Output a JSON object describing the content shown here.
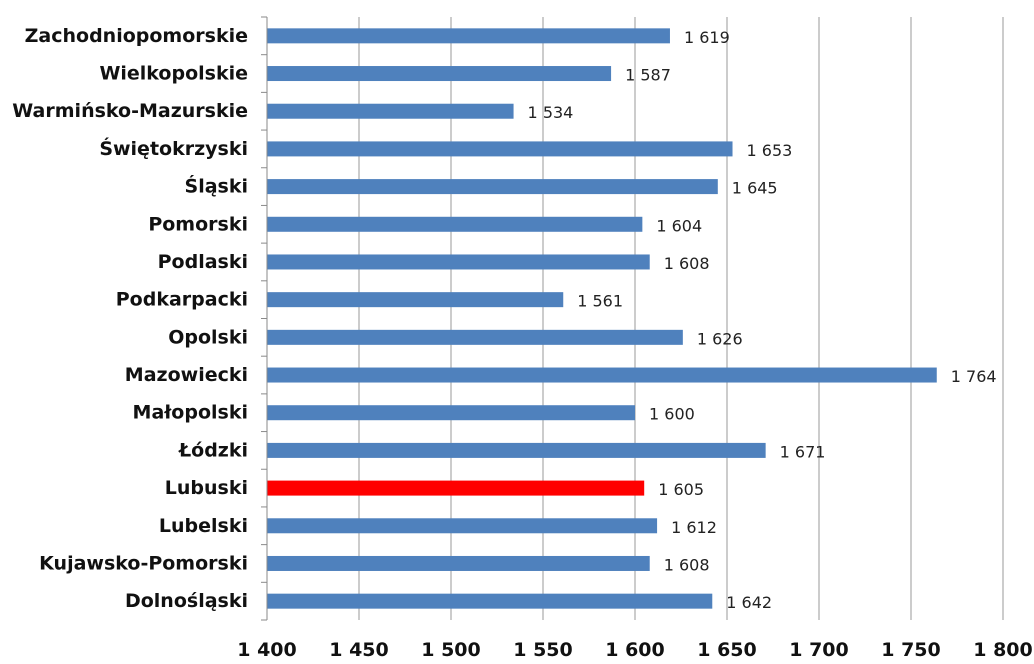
{
  "chart_data": {
    "type": "bar",
    "orientation": "horizontal",
    "categories": [
      "Zachodniopomorskie",
      "Wielkopolskie",
      "Warmińsko-Mazurskie",
      "Świętokrzyski",
      "Śląski",
      "Pomorski",
      "Podlaski",
      "Podkarpacki",
      "Opolski",
      "Mazowiecki",
      "Małopolski",
      "Łódzki",
      "Lubuski",
      "Lubelski",
      "Kujawsko-Pomorski",
      "Dolnośląski"
    ],
    "values": [
      1619,
      1587,
      1534,
      1653,
      1645,
      1604,
      1608,
      1561,
      1626,
      1764,
      1600,
      1671,
      1605,
      1612,
      1608,
      1642
    ],
    "value_labels": [
      "1 619",
      "1 587",
      "1 534",
      "1 653",
      "1 645",
      "1 604",
      "1 608",
      "1 561",
      "1 626",
      "1 764",
      "1 600",
      "1 671",
      "1 605",
      "1 612",
      "1 608",
      "1 642"
    ],
    "xlim": [
      1400,
      1800
    ],
    "xticks": [
      1400,
      1450,
      1500,
      1550,
      1600,
      1650,
      1700,
      1750,
      1800
    ],
    "xtick_labels": [
      "1 400",
      "1 450",
      "1 500",
      "1 550",
      "1 600",
      "1 650",
      "1 700",
      "1 750",
      "1 800"
    ],
    "title": "",
    "xlabel": "",
    "ylabel": "",
    "grid": "vertical",
    "legend": "none",
    "colors": {
      "bar": "#4F81BD",
      "highlight": "#FF0000",
      "gridline": "#9a9a9a"
    },
    "highlight_category": "Lubuski"
  }
}
